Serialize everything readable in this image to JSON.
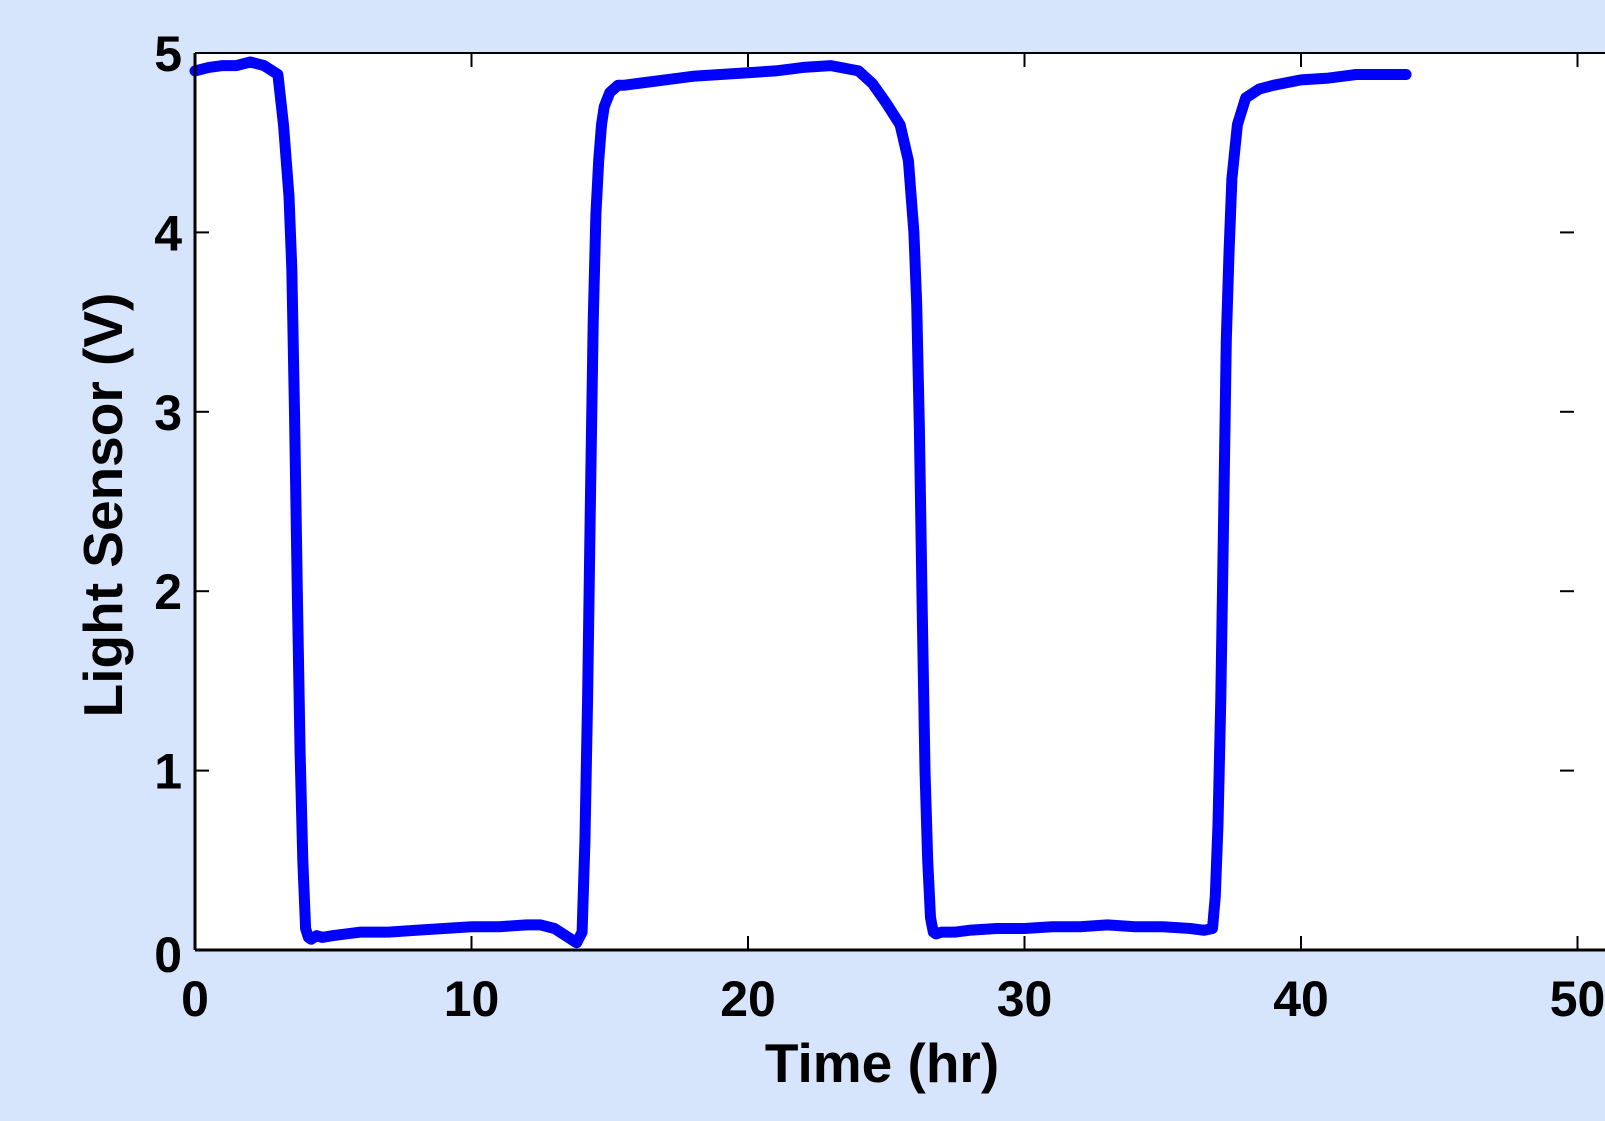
{
  "chart_data": {
    "type": "line",
    "title": "",
    "xlabel": "Time (hr)",
    "ylabel": "Light Sensor (V)",
    "xlim": [
      0,
      50
    ],
    "ylim": [
      0,
      5
    ],
    "xticks": [
      0,
      10,
      20,
      30,
      40,
      50
    ],
    "yticks": [
      0,
      1,
      2,
      3,
      4,
      5
    ],
    "xtick_labels": [
      "0",
      "10",
      "20",
      "30",
      "40",
      "50"
    ],
    "ytick_labels": [
      "0",
      "1",
      "2",
      "3",
      "4",
      "5"
    ],
    "grid": false,
    "legend": "none",
    "series": [
      {
        "color": "#0000ff",
        "x": [
          0.0,
          0.5,
          1.0,
          1.5,
          2.0,
          2.5,
          3.0,
          3.2,
          3.4,
          3.5,
          3.6,
          3.7,
          3.8,
          3.9,
          4.0,
          4.1,
          4.2,
          4.3,
          4.4,
          4.6,
          5.0,
          6.0,
          7.0,
          8.0,
          9.0,
          10.0,
          11.0,
          12.0,
          12.5,
          13.0,
          13.5,
          13.8,
          14.0,
          14.1,
          14.2,
          14.3,
          14.4,
          14.5,
          14.6,
          14.7,
          14.8,
          15.0,
          15.3,
          15.5,
          16.0,
          17.0,
          18.0,
          19.0,
          20.0,
          21.0,
          22.0,
          23.0,
          24.0,
          24.5,
          25.0,
          25.5,
          25.8,
          26.0,
          26.1,
          26.2,
          26.3,
          26.4,
          26.5,
          26.6,
          26.7,
          26.8,
          27.0,
          27.5,
          28.0,
          29.0,
          30.0,
          31.0,
          32.0,
          33.0,
          34.0,
          35.0,
          36.0,
          36.5,
          36.8,
          36.9,
          37.0,
          37.1,
          37.2,
          37.3,
          37.4,
          37.5,
          37.7,
          38.0,
          38.5,
          39.0,
          40.0,
          41.0,
          42.0,
          43.0,
          43.8
        ],
        "y": [
          4.9,
          4.92,
          4.93,
          4.93,
          4.95,
          4.93,
          4.88,
          4.6,
          4.2,
          3.8,
          3.0,
          2.0,
          1.1,
          0.5,
          0.12,
          0.07,
          0.06,
          0.07,
          0.08,
          0.07,
          0.08,
          0.1,
          0.1,
          0.11,
          0.12,
          0.13,
          0.13,
          0.14,
          0.14,
          0.12,
          0.07,
          0.04,
          0.1,
          0.6,
          1.4,
          2.5,
          3.5,
          4.1,
          4.4,
          4.6,
          4.7,
          4.78,
          4.82,
          4.82,
          4.83,
          4.85,
          4.87,
          4.88,
          4.89,
          4.9,
          4.92,
          4.93,
          4.9,
          4.83,
          4.72,
          4.6,
          4.4,
          4.0,
          3.6,
          2.9,
          1.9,
          1.0,
          0.5,
          0.18,
          0.1,
          0.09,
          0.1,
          0.1,
          0.11,
          0.12,
          0.12,
          0.13,
          0.13,
          0.14,
          0.13,
          0.13,
          0.12,
          0.11,
          0.12,
          0.3,
          0.7,
          1.4,
          2.4,
          3.4,
          3.9,
          4.3,
          4.6,
          4.75,
          4.8,
          4.82,
          4.85,
          4.86,
          4.88,
          4.88,
          4.88
        ]
      }
    ]
  }
}
